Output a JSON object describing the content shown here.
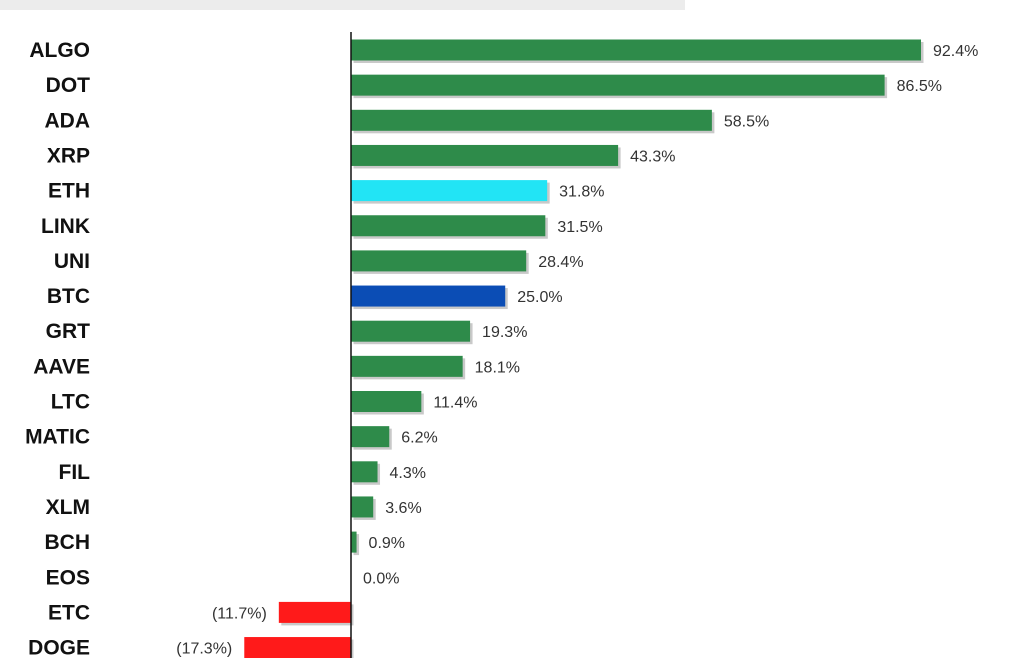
{
  "chart_data": {
    "type": "bar",
    "orientation": "horizontal",
    "categories": [
      "ALGO",
      "DOT",
      "ADA",
      "XRP",
      "ETH",
      "LINK",
      "UNI",
      "BTC",
      "GRT",
      "AAVE",
      "LTC",
      "MATIC",
      "FIL",
      "XLM",
      "BCH",
      "EOS",
      "ETC",
      "DOGE"
    ],
    "values": [
      92.4,
      86.5,
      58.5,
      43.3,
      31.8,
      31.5,
      28.4,
      25.0,
      19.3,
      18.1,
      11.4,
      6.2,
      4.3,
      3.6,
      0.9,
      0.0,
      -11.7,
      -17.3
    ],
    "value_labels": [
      "92.4%",
      "86.5%",
      "58.5%",
      "43.3%",
      "31.8%",
      "31.5%",
      "28.4%",
      "25.0%",
      "19.3%",
      "18.1%",
      "11.4%",
      "6.2%",
      "4.3%",
      "3.6%",
      "0.9%",
      "0.0%",
      "(11.7%)",
      "(17.3%)"
    ],
    "colors": [
      "#2e8b4a",
      "#2e8b4a",
      "#2e8b4a",
      "#2e8b4a",
      "#22e4f5",
      "#2e8b4a",
      "#2e8b4a",
      "#0b4db5",
      "#2e8b4a",
      "#2e8b4a",
      "#2e8b4a",
      "#2e8b4a",
      "#2e8b4a",
      "#2e8b4a",
      "#2e8b4a",
      "#2e8b4a",
      "#ff1a1a",
      "#ff1a1a"
    ],
    "xlim": [
      -17.3,
      92.4
    ],
    "grid": false,
    "legend": "none"
  }
}
